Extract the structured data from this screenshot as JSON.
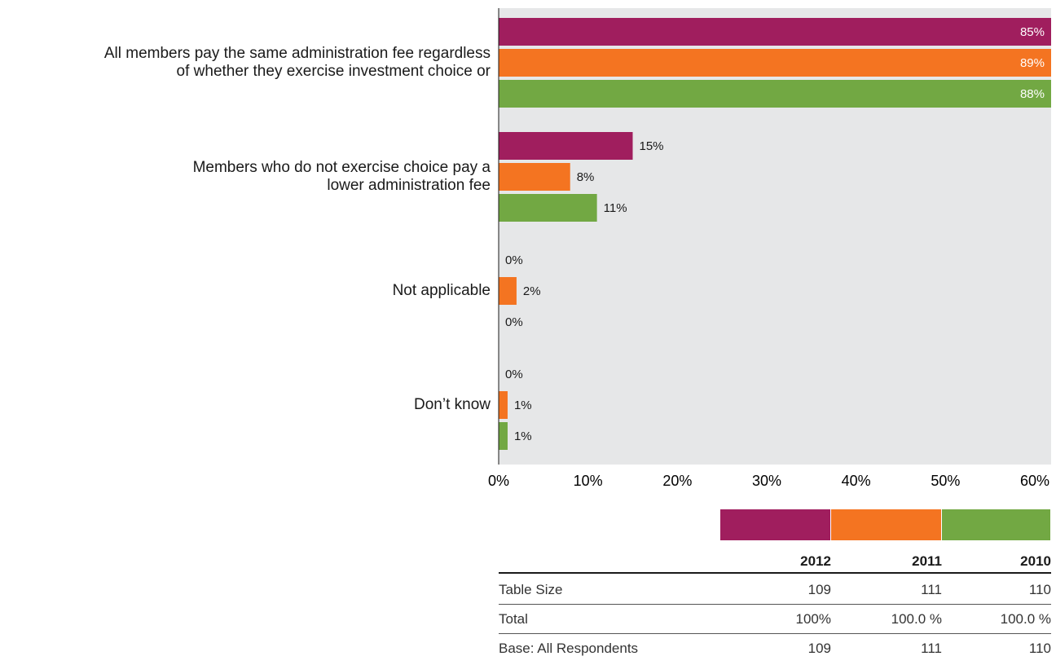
{
  "chart_data": {
    "type": "bar",
    "orientation": "horizontal",
    "categories": [
      "All members pay the same administration fee regardless\nof whether they exercise investment choice or",
      "Members who do not exercise choice pay a\nlower administration fee",
      "Not applicable",
      "Don’t know"
    ],
    "series": [
      {
        "name": "2012",
        "color": "#a01e5e",
        "values": [
          85,
          15,
          0,
          0
        ],
        "value_labels": [
          "85%",
          "15%",
          "0%",
          "0%"
        ]
      },
      {
        "name": "2011",
        "color": "#f47421",
        "values": [
          89,
          8,
          2,
          1
        ],
        "value_labels": [
          "89%",
          "8%",
          "2%",
          "1%"
        ]
      },
      {
        "name": "2010",
        "color": "#72a843",
        "values": [
          88,
          11,
          0,
          1
        ],
        "value_labels": [
          "88%",
          "11%",
          "0%",
          "1%"
        ]
      }
    ],
    "xlim": [
      0,
      60
    ],
    "xticks": [
      {
        "value": 0,
        "label": "0%"
      },
      {
        "value": 10,
        "label": "10%"
      },
      {
        "value": 20,
        "label": "20%"
      },
      {
        "value": 30,
        "label": "30%"
      },
      {
        "value": 40,
        "label": "40%"
      },
      {
        "value": 50,
        "label": "50%"
      },
      {
        "value": 60,
        "label": "60%"
      }
    ]
  },
  "table": {
    "rows": [
      [
        "Table Size",
        "109",
        "111",
        "110"
      ],
      [
        "Total",
        "100%",
        "100.0 %",
        "100.0 %"
      ],
      [
        "Base: All Respondents",
        "109",
        "111",
        "110"
      ]
    ]
  }
}
